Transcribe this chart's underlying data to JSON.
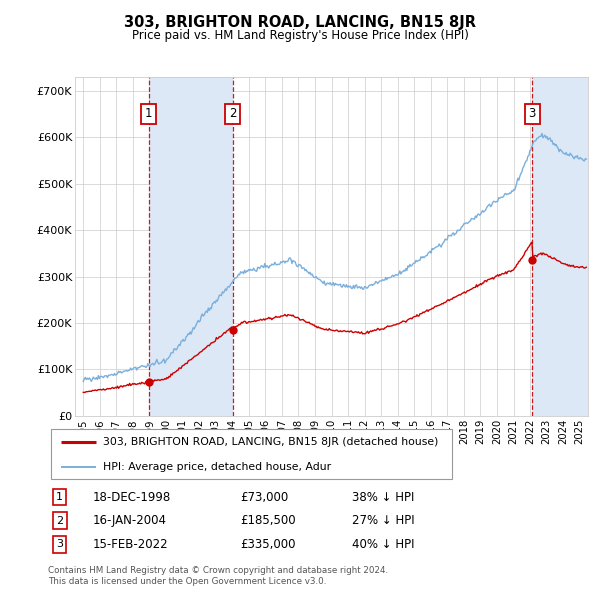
{
  "title": "303, BRIGHTON ROAD, LANCING, BN15 8JR",
  "subtitle": "Price paid vs. HM Land Registry's House Price Index (HPI)",
  "legend_line1": "303, BRIGHTON ROAD, LANCING, BN15 8JR (detached house)",
  "legend_line2": "HPI: Average price, detached house, Adur",
  "transactions": [
    {
      "num": 1,
      "date": "18-DEC-1998",
      "price": 73000,
      "price_str": "£73,000",
      "pct": "38% ↓ HPI",
      "x_year": 1998.96
    },
    {
      "num": 2,
      "date": "16-JAN-2004",
      "price": 185500,
      "price_str": "£185,500",
      "pct": "27% ↓ HPI",
      "x_year": 2004.04
    },
    {
      "num": 3,
      "date": "15-FEB-2022",
      "price": 335000,
      "price_str": "£335,000",
      "pct": "40% ↓ HPI",
      "x_year": 2022.12
    }
  ],
  "footer_line1": "Contains HM Land Registry data © Crown copyright and database right 2024.",
  "footer_line2": "This data is licensed under the Open Government Licence v3.0.",
  "ylim": [
    0,
    730000
  ],
  "xlim_start": 1994.5,
  "xlim_end": 2025.5,
  "red_color": "#cc0000",
  "blue_color": "#7aafdc",
  "shade_color": "#dce8f5",
  "background_color": "#ffffff",
  "grid_color": "#cccccc",
  "yticks": [
    0,
    100000,
    200000,
    300000,
    400000,
    500000,
    600000,
    700000
  ],
  "ylabels": [
    "£0",
    "£100K",
    "£200K",
    "£300K",
    "£400K",
    "£500K",
    "£600K",
    "£700K"
  ],
  "xtick_years": [
    1995,
    1996,
    1997,
    1998,
    1999,
    2000,
    2001,
    2002,
    2003,
    2004,
    2005,
    2006,
    2007,
    2008,
    2009,
    2010,
    2011,
    2012,
    2013,
    2014,
    2015,
    2016,
    2017,
    2018,
    2019,
    2020,
    2021,
    2022,
    2023,
    2024,
    2025
  ]
}
